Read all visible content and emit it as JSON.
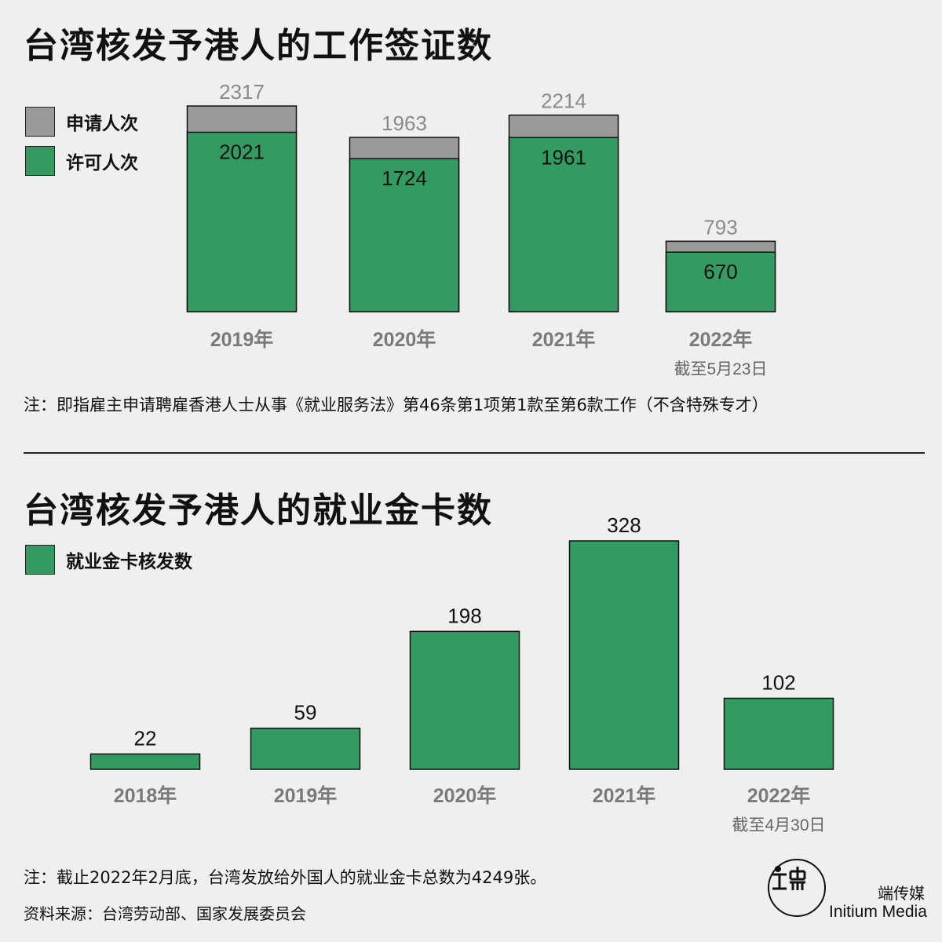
{
  "colors": {
    "green": "#339b61",
    "gray": "#9a9a9a",
    "background": "#efefef",
    "axis_label": "#7a7a7a"
  },
  "chart1": {
    "title": "台湾核发予港人的工作签证数",
    "legend": [
      {
        "label": "申请人次",
        "color": "#9a9a9a"
      },
      {
        "label": "许可人次",
        "color": "#339b61"
      }
    ],
    "note": "注：即指雇主申请聘雇香港人士从事《就业服务法》第46条第1项第1款至第6款工作（不含特殊专才）",
    "years": [
      {
        "label": "2019年",
        "sub": ""
      },
      {
        "label": "2020年",
        "sub": ""
      },
      {
        "label": "2021年",
        "sub": ""
      },
      {
        "label": "2022年",
        "sub": "截至5月23日"
      }
    ]
  },
  "chart2": {
    "title": "台湾核发予港人的就业金卡数",
    "legend": [
      {
        "label": "就业金卡核发数",
        "color": "#339b61"
      }
    ],
    "years": [
      {
        "label": "2018年",
        "sub": ""
      },
      {
        "label": "2019年",
        "sub": ""
      },
      {
        "label": "2020年",
        "sub": ""
      },
      {
        "label": "2021年",
        "sub": ""
      },
      {
        "label": "2022年",
        "sub": "截至4月30日"
      }
    ]
  },
  "footer": {
    "note": "注：截止2022年2月底，台湾发放给外国人的就业金卡总数为4249张。",
    "source": "资料来源：台湾劳动部、国家发展委员会"
  },
  "logo": {
    "cn": "端传媒",
    "en": "Initium Media"
  },
  "chart_data": [
    {
      "type": "bar",
      "title": "台湾核发予港人的工作签证数",
      "categories": [
        "2019年",
        "2020年",
        "2021年",
        "2022年"
      ],
      "series": [
        {
          "name": "申请人次",
          "values": [
            2317,
            1963,
            2214,
            793
          ],
          "color": "#9a9a9a"
        },
        {
          "name": "许可人次",
          "values": [
            2021,
            1724,
            1961,
            670
          ],
          "color": "#339b61"
        }
      ],
      "xlabel": "",
      "ylabel": "",
      "ylim": [
        0,
        2317
      ],
      "grid": false,
      "legend": "top-left"
    },
    {
      "type": "bar",
      "title": "台湾核发予港人的就业金卡数",
      "categories": [
        "2018年",
        "2019年",
        "2020年",
        "2021年",
        "2022年"
      ],
      "series": [
        {
          "name": "就业金卡核发数",
          "values": [
            22,
            59,
            198,
            328,
            102
          ],
          "color": "#339b61"
        }
      ],
      "xlabel": "",
      "ylabel": "",
      "ylim": [
        0,
        328
      ],
      "grid": false,
      "legend": "top-left"
    }
  ]
}
